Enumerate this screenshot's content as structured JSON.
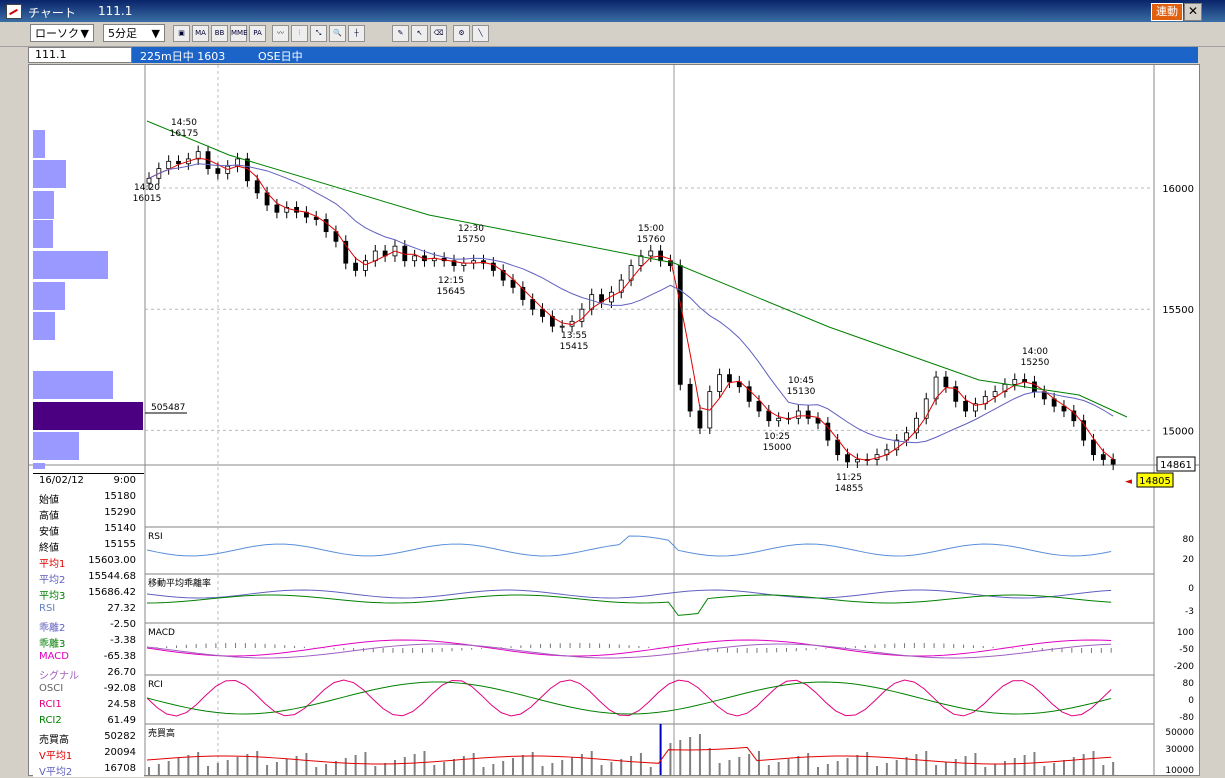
{
  "window": {
    "title": "チャート",
    "symbol": "111.1",
    "link_label": "連動",
    "close_glyph": "✕"
  },
  "toolbar": {
    "chart_type": "ローソク",
    "interval": "5分足",
    "dropdown_arrow": "▼",
    "buttons": [
      "MA",
      "BB",
      "MME",
      "PA"
    ]
  },
  "infobar": {
    "symbol": "111.1",
    "name": "225m日中 1603",
    "market": "OSE日中"
  },
  "price_axis": {
    "labels": [
      "16000",
      "15500",
      "15000"
    ],
    "current": "14861",
    "last": "14805"
  },
  "volume_profile_label": "505487",
  "annotations": [
    {
      "time": "14:50",
      "price": "16175"
    },
    {
      "time": "14:20",
      "price": "16015"
    },
    {
      "time": "12:30",
      "price": "15750"
    },
    {
      "time": "12:15",
      "price": "15645"
    },
    {
      "time": "13:55",
      "price": "15415"
    },
    {
      "time": "15:00",
      "price": "15760"
    },
    {
      "time": "10:45",
      "price": "15130"
    },
    {
      "time": "10:25",
      "price": "15000"
    },
    {
      "time": "11:25",
      "price": "14855"
    },
    {
      "time": "14:00",
      "price": "15250"
    }
  ],
  "indicators": {
    "rsi": {
      "label": "RSI",
      "ticks": [
        "80",
        "20"
      ]
    },
    "kairi": {
      "label": "移動平均乖離率",
      "ticks": [
        "0",
        "-3"
      ]
    },
    "macd": {
      "label": "MACD",
      "ticks": [
        "100",
        "-50",
        "-200"
      ]
    },
    "rci": {
      "label": "RCI",
      "ticks": [
        "80",
        "0",
        "-80"
      ]
    },
    "volume": {
      "label": "売買高",
      "ticks": [
        "50000",
        "30000",
        "10000"
      ]
    }
  },
  "data_panel": {
    "date": "16/02/12",
    "time": "9:00",
    "rows": [
      {
        "k": "始値",
        "v": "15180",
        "color": "#000000"
      },
      {
        "k": "高値",
        "v": "15290",
        "color": "#000000"
      },
      {
        "k": "安値",
        "v": "15140",
        "color": "#000000"
      },
      {
        "k": "終値",
        "v": "15155",
        "color": "#000000"
      },
      {
        "k": "平均1",
        "v": "15603.00",
        "color": "#e00000"
      },
      {
        "k": "平均2",
        "v": "15544.68",
        "color": "#6060c0"
      },
      {
        "k": "平均3",
        "v": "15686.42",
        "color": "#008000"
      },
      {
        "k": "RSI",
        "v": "27.32",
        "color": "#6080c0"
      },
      {
        "k": "乖離2",
        "v": "-2.50",
        "color": "#6060c0"
      },
      {
        "k": "乖離3",
        "v": "-3.38",
        "color": "#008000"
      },
      {
        "k": "MACD",
        "v": "-65.38",
        "color": "#e000c0"
      },
      {
        "k": "シグナル",
        "v": "26.70",
        "color": "#a060c0"
      },
      {
        "k": "OSCI",
        "v": "-92.08",
        "color": "#606060"
      },
      {
        "k": "RCI1",
        "v": "24.58",
        "color": "#e00080"
      },
      {
        "k": "RCI2",
        "v": "61.49",
        "color": "#008000"
      },
      {
        "k": "売買高",
        "v": "50282",
        "color": "#000000"
      },
      {
        "k": "V平均1",
        "v": "20094",
        "color": "#e00000"
      },
      {
        "k": "V平均2",
        "v": "16708",
        "color": "#6060c0"
      }
    ]
  },
  "colors": {
    "ma1": "#e00000",
    "ma2": "#6060c0",
    "ma3": "#008000",
    "profile": "#9999ff",
    "profile_peak": "#4b0082",
    "rsi": "#5b8fd9",
    "titlebar": "#0a246a"
  }
}
